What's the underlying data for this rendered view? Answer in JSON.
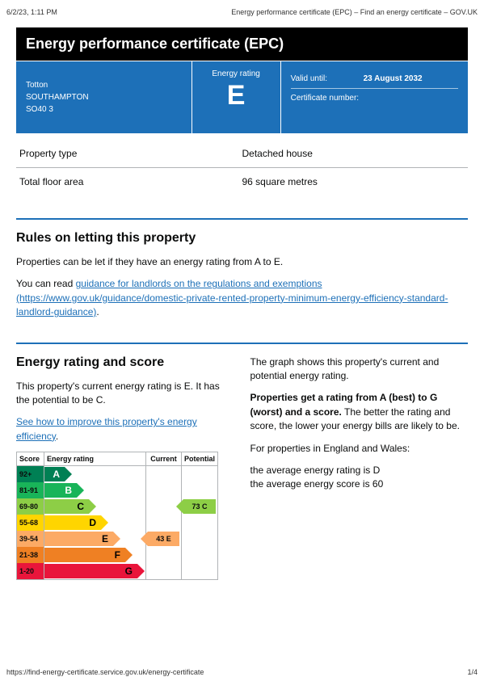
{
  "print": {
    "datetime": "6/2/23, 1:11 PM",
    "doc_title": "Energy performance certificate (EPC) – Find an energy certificate – GOV.UK",
    "footer_url": "https://find-energy-certificate.service.gov.uk/energy-certificate",
    "page_num": "1/4"
  },
  "title": "Energy performance certificate (EPC)",
  "address": {
    "line1": "Totton",
    "line2": "SOUTHAMPTON",
    "line3": "SO40 3"
  },
  "summary": {
    "rating_label": "Energy rating",
    "rating_letter": "E",
    "valid_label": "Valid until:",
    "valid_value": "23 August 2032",
    "cert_label": "Certificate number:",
    "cert_value": ""
  },
  "property": {
    "type_label": "Property type",
    "type_value": "Detached house",
    "area_label": "Total floor area",
    "area_value": "96 square metres"
  },
  "letting": {
    "heading": "Rules on letting this property",
    "p1": "Properties can be let if they have an energy rating from A to E.",
    "p2_pre": "You can read ",
    "link_text": "guidance for landlords on the regulations and exemptions (https://www.gov.uk/guidance/domestic-private-rented-property-minimum-energy-efficiency-standard-landlord-guidance)",
    "p2_post": "."
  },
  "rating_section": {
    "heading": "Energy rating and score",
    "p1": "This property's current energy rating is E. It has the potential to be C.",
    "link": "See how to improve this property's energy efficiency",
    "link_post": ".",
    "right_p1": "The graph shows this property's current and potential energy rating.",
    "right_p2_strong": "Properties get a rating from A (best) to G (worst) and a score.",
    "right_p2_rest": " The better the rating and score, the lower your energy bills are likely to be.",
    "right_p3": "For properties in England and Wales:",
    "right_p4a": "the average energy rating is D",
    "right_p4b": "the average energy score is 60"
  },
  "chart": {
    "headers": {
      "score": "Score",
      "rating": "Energy rating",
      "current": "Current",
      "potential": "Potential"
    },
    "bands": [
      {
        "range": "92+",
        "letter": "A",
        "color": "#008054",
        "width_pct": 20
      },
      {
        "range": "81-91",
        "letter": "B",
        "color": "#19b459",
        "width_pct": 32
      },
      {
        "range": "69-80",
        "letter": "C",
        "color": "#8dce46",
        "width_pct": 44
      },
      {
        "range": "55-68",
        "letter": "D",
        "color": "#ffd500",
        "width_pct": 56
      },
      {
        "range": "39-54",
        "letter": "E",
        "color": "#fcaa65",
        "width_pct": 68
      },
      {
        "range": "21-38",
        "letter": "F",
        "color": "#ef8023",
        "width_pct": 80
      },
      {
        "range": "1-20",
        "letter": "G",
        "color": "#e9153b",
        "width_pct": 92
      }
    ],
    "current": {
      "score": 43,
      "letter": "E",
      "band_index": 4,
      "color": "#fcaa65"
    },
    "potential": {
      "score": 73,
      "letter": "C",
      "band_index": 2,
      "color": "#8dce46"
    }
  },
  "colors": {
    "brand_blue": "#1d70b8",
    "black": "#000000",
    "border_grey": "#b1b4b6"
  }
}
